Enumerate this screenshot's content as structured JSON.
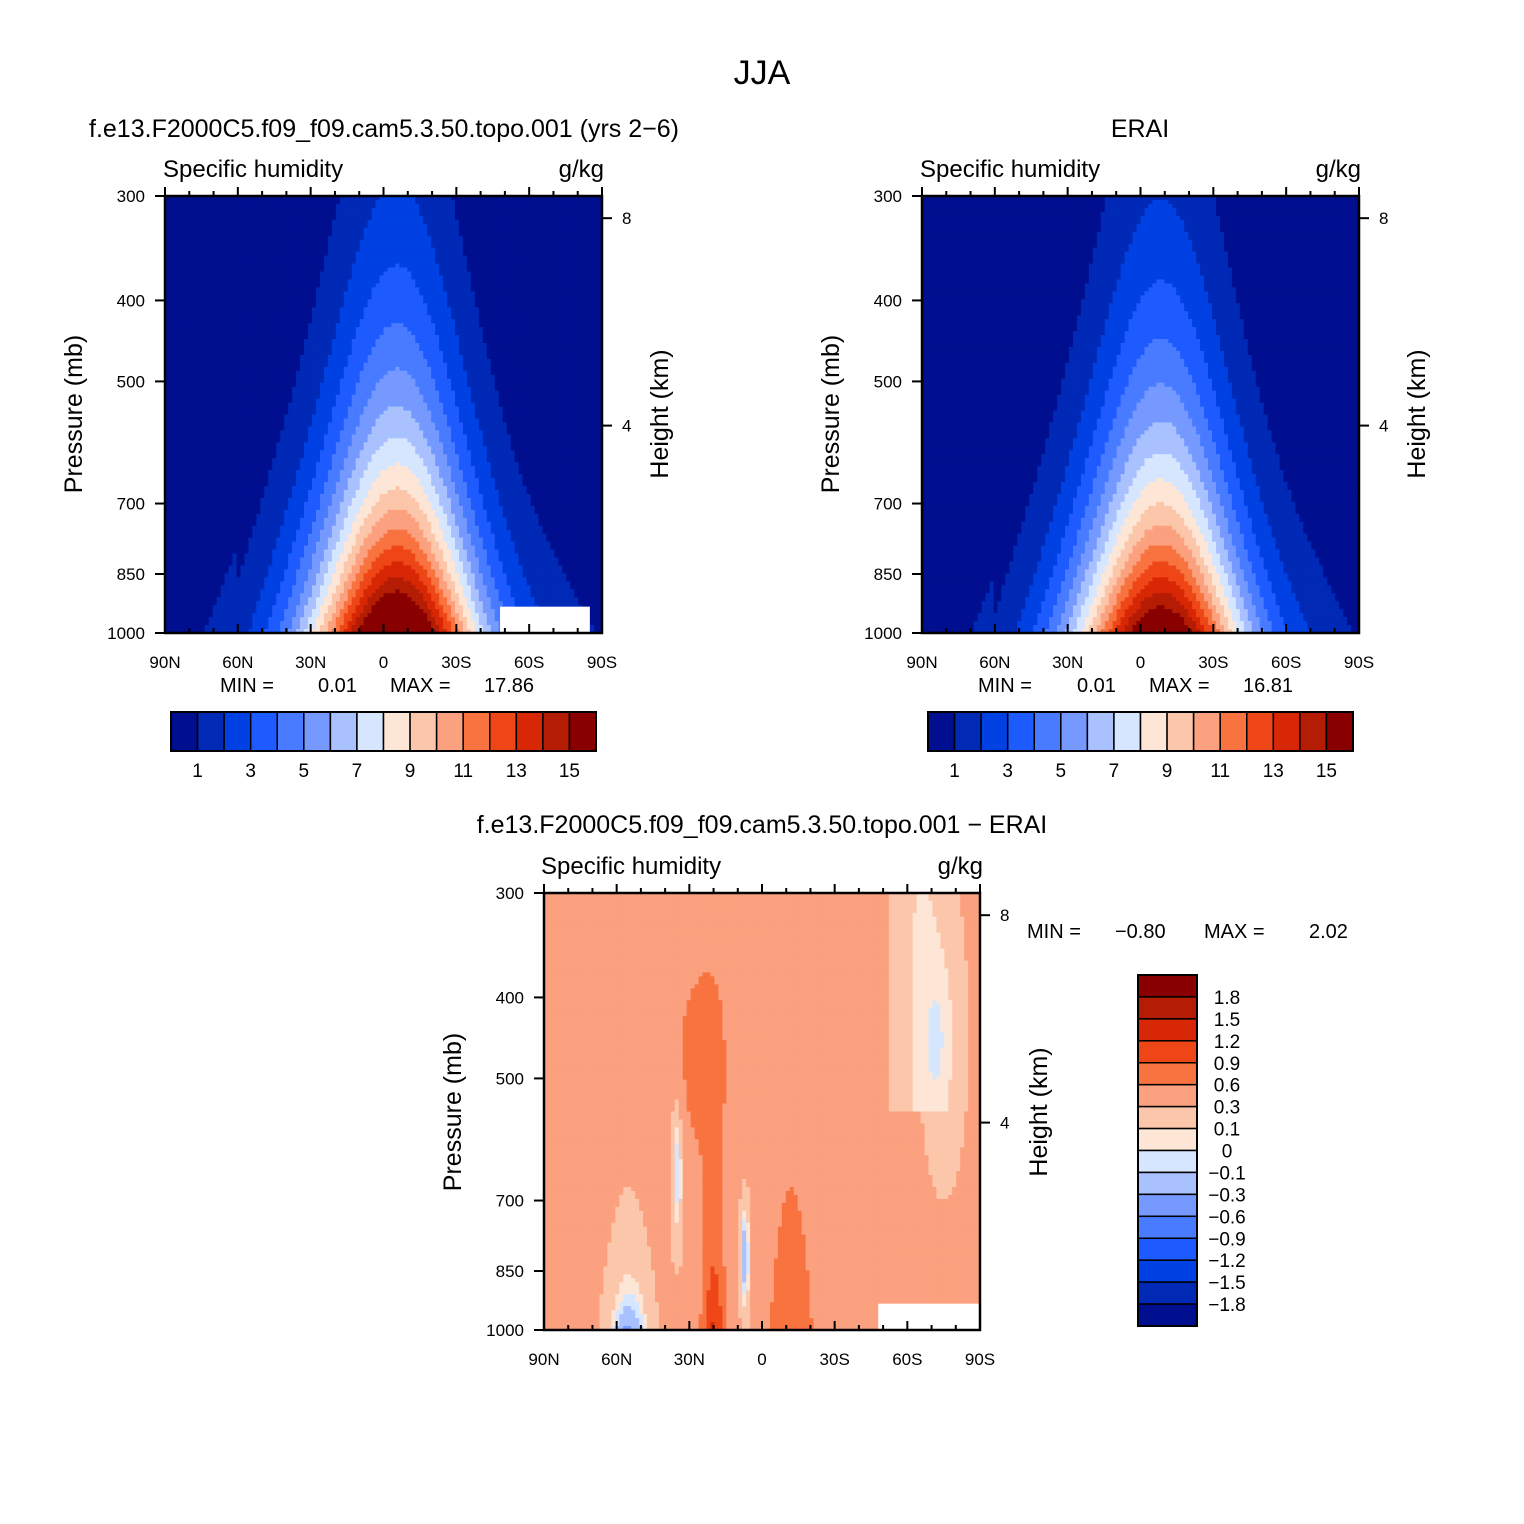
{
  "figure": {
    "title": "JJA"
  },
  "panels": [
    {
      "title": "f.e13.F2000C5.f09_f09.cam5.3.50.topo.001 (yrs 2−6)",
      "variable": "Specific humidity",
      "units": "g/kg",
      "ylabel": "Pressure (mb)",
      "y2label": "Height (km)",
      "min_label": "MIN =",
      "min_value": "0.01",
      "max_label": "MAX =",
      "max_value": "17.86"
    },
    {
      "title": "ERAI",
      "variable": "Specific humidity",
      "units": "g/kg",
      "ylabel": "Pressure (mb)",
      "y2label": "Height (km)",
      "min_label": "MIN =",
      "min_value": "0.01",
      "max_label": "MAX =",
      "max_value": "16.81"
    },
    {
      "title": "f.e13.F2000C5.f09_f09.cam5.3.50.topo.001 − ERAI",
      "variable": "Specific humidity",
      "units": "g/kg",
      "ylabel": "Pressure (mb)",
      "y2label": "Height (km)",
      "min_label": "MIN =",
      "min_value": "−0.80",
      "max_label": "MAX =",
      "max_value": "2.02"
    }
  ],
  "chart_data": [
    {
      "type": "heatmap",
      "title": "f.e13.F2000C5.f09_f09.cam5.3.50.topo.001 (yrs 2−6)",
      "subtitle": "Specific humidity",
      "units": "g/kg",
      "ylabel": "Pressure (mb)",
      "y2label": "Height (km)",
      "x_ticks": [
        "90N",
        "60N",
        "30N",
        "0",
        "30S",
        "60S",
        "90S"
      ],
      "x_range": [
        90,
        -90
      ],
      "y_ticks": [
        300,
        400,
        500,
        700,
        850,
        1000
      ],
      "y_range": [
        300,
        1000
      ],
      "y_scale": "log",
      "y2_ticks": [
        4,
        8
      ],
      "color_levels": [
        1,
        2,
        3,
        4,
        5,
        6,
        7,
        8,
        9,
        10,
        11,
        12,
        13,
        14,
        15
      ],
      "colorbar_labels": [
        "1",
        "3",
        "5",
        "7",
        "9",
        "11",
        "13",
        "15"
      ],
      "colors": [
        "#000f8f",
        "#0029b6",
        "#0041e3",
        "#1e5bff",
        "#487bff",
        "#7599ff",
        "#a9c1ff",
        "#d6e6ff",
        "#fde6d6",
        "#fcc6ab",
        "#fba17f",
        "#f8733f",
        "#ef4618",
        "#d82705",
        "#b51c04",
        "#890000"
      ],
      "peak": {
        "lat": -5,
        "p": 1000,
        "max": 17.86
      },
      "min": 0.01,
      "max": 17.86,
      "missing": [
        {
          "lat_from": -48,
          "lat_to": -85,
          "p_from": 930,
          "p_to": 1000
        }
      ]
    },
    {
      "type": "heatmap",
      "title": "ERAI",
      "subtitle": "Specific humidity",
      "units": "g/kg",
      "ylabel": "Pressure (mb)",
      "y2label": "Height (km)",
      "x_ticks": [
        "90N",
        "60N",
        "30N",
        "0",
        "30S",
        "60S",
        "90S"
      ],
      "x_range": [
        90,
        -90
      ],
      "y_ticks": [
        300,
        400,
        500,
        700,
        850,
        1000
      ],
      "y_range": [
        300,
        1000
      ],
      "y_scale": "log",
      "y2_ticks": [
        4,
        8
      ],
      "color_levels": [
        1,
        2,
        3,
        4,
        5,
        6,
        7,
        8,
        9,
        10,
        11,
        12,
        13,
        14,
        15
      ],
      "colorbar_labels": [
        "1",
        "3",
        "5",
        "7",
        "9",
        "11",
        "13",
        "15"
      ],
      "colors": [
        "#000f8f",
        "#0029b6",
        "#0041e3",
        "#1e5bff",
        "#487bff",
        "#7599ff",
        "#a9c1ff",
        "#d6e6ff",
        "#fde6d6",
        "#fcc6ab",
        "#fba17f",
        "#f8733f",
        "#ef4618",
        "#d82705",
        "#b51c04",
        "#890000"
      ],
      "peak": {
        "lat": -8,
        "p": 1000,
        "max": 16.81
      },
      "min": 0.01,
      "max": 16.81
    },
    {
      "type": "heatmap",
      "title": "f.e13.F2000C5.f09_f09.cam5.3.50.topo.001 − ERAI",
      "subtitle": "Specific humidity",
      "units": "g/kg",
      "ylabel": "Pressure (mb)",
      "y2label": "Height (km)",
      "x_ticks": [
        "90N",
        "60N",
        "30N",
        "0",
        "30S",
        "60S",
        "90S"
      ],
      "x_range": [
        90,
        -90
      ],
      "y_ticks": [
        300,
        400,
        500,
        700,
        850,
        1000
      ],
      "y_range": [
        300,
        1000
      ],
      "y_scale": "log",
      "y2_ticks": [
        4,
        8
      ],
      "color_levels": [
        -1.8,
        -1.5,
        -1.2,
        -0.9,
        -0.6,
        -0.3,
        -0.1,
        0,
        0.1,
        0.3,
        0.6,
        0.9,
        1.2,
        1.5,
        1.8
      ],
      "colorbar_labels": [
        "1.8",
        "1.5",
        "1.2",
        "0.9",
        "0.6",
        "0.3",
        "0.1",
        "0",
        "−0.1",
        "−0.3",
        "−0.6",
        "−0.9",
        "−1.2",
        "−1.5",
        "−1.8"
      ],
      "colors": [
        "#000f8f",
        "#0029b6",
        "#0041e3",
        "#1e5bff",
        "#487bff",
        "#7599ff",
        "#a9c1ff",
        "#d6e6ff",
        "#fde6d6",
        "#fcc6ab",
        "#fba17f",
        "#f8733f",
        "#ef4618",
        "#d82705",
        "#b51c04",
        "#890000"
      ],
      "min": -0.8,
      "max": 2.02,
      "missing": [
        {
          "lat_from": -48,
          "lat_to": -90,
          "p_from": 930,
          "p_to": 1000
        }
      ]
    }
  ]
}
